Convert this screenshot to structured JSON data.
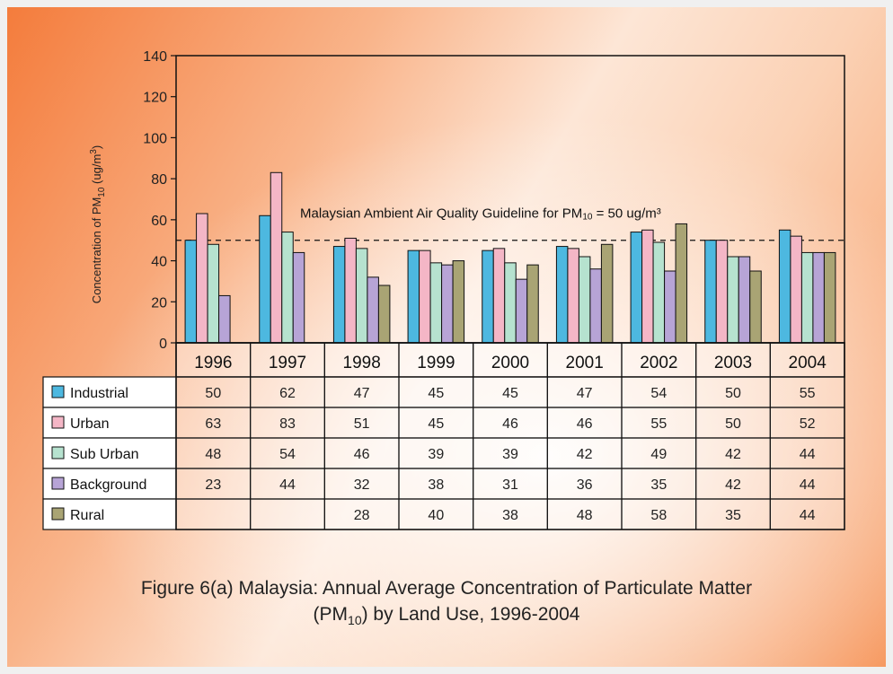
{
  "chart_data": {
    "type": "bar",
    "categories": [
      "1996",
      "1997",
      "1998",
      "1999",
      "2000",
      "2001",
      "2002",
      "2003",
      "2004"
    ],
    "series": [
      {
        "name": "Industrial",
        "color": "#4db8e0",
        "values": [
          50,
          62,
          47,
          45,
          45,
          47,
          54,
          50,
          55
        ]
      },
      {
        "name": "Urban",
        "color": "#f4b6c6",
        "values": [
          63,
          83,
          51,
          45,
          46,
          46,
          55,
          50,
          52
        ]
      },
      {
        "name": "Sub Urban",
        "color": "#b6e2cf",
        "values": [
          48,
          54,
          46,
          39,
          39,
          42,
          49,
          42,
          44
        ]
      },
      {
        "name": "Background",
        "color": "#b7a4d6",
        "values": [
          23,
          44,
          32,
          38,
          31,
          36,
          35,
          42,
          44
        ]
      },
      {
        "name": "Rural",
        "color": "#a9a474",
        "values": [
          null,
          null,
          28,
          40,
          38,
          48,
          58,
          35,
          44
        ]
      }
    ],
    "ylim": [
      0,
      140
    ],
    "yticks": [
      0,
      20,
      40,
      60,
      80,
      100,
      120,
      140
    ],
    "ylabel": {
      "prefix": "Concentration of PM",
      "sub": "10",
      "mid": " (ug/m",
      "sup": "3",
      "suffix": ")"
    },
    "guideline": {
      "value": 50,
      "label_prefix": "Malaysian Ambient Air Quality Guideline for PM",
      "label_sub": "10",
      "label_suffix": " = 50 ug/m³"
    },
    "table": {
      "display_values": [
        [
          "50",
          "62",
          "47",
          "45",
          "45",
          "47",
          "54",
          "50",
          "55"
        ],
        [
          "63",
          "83",
          "51",
          "45",
          "46",
          "46",
          "55",
          "50",
          "52"
        ],
        [
          "48",
          "54",
          "46",
          "39",
          "39",
          "42",
          "49",
          "42",
          "44"
        ],
        [
          "23",
          "44",
          "32",
          "38",
          "31",
          "36",
          "35",
          "42",
          "44"
        ],
        [
          "",
          "",
          "28",
          "40",
          "38",
          "48",
          "58",
          "35",
          "44"
        ]
      ]
    }
  },
  "caption": {
    "line1": "Figure 6(a) Malaysia: Annual Average Concentration of Particulate Matter",
    "line2_prefix": "(PM",
    "line2_sub": "10",
    "line2_suffix": ") by Land Use, 1996-2004"
  }
}
